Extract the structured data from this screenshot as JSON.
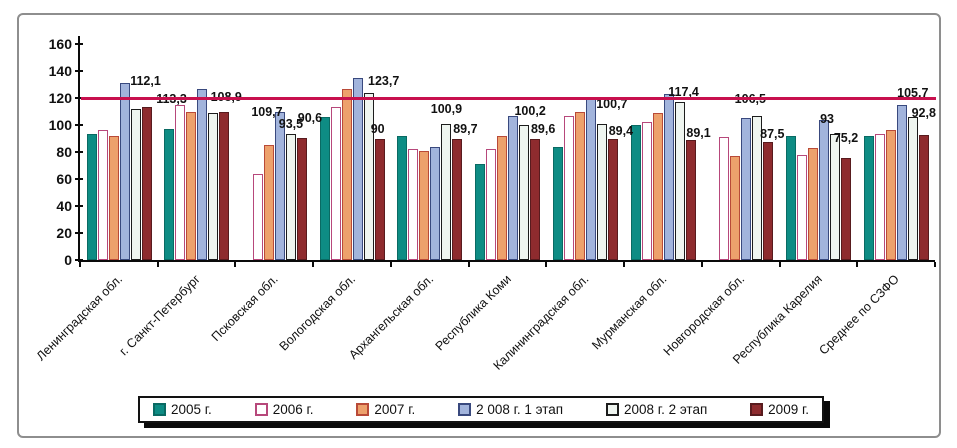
{
  "chart_data": {
    "type": "bar",
    "title": "",
    "xlabel": "",
    "ylabel": "",
    "ylim": [
      0,
      160
    ],
    "ytick_step": 20,
    "yticks": [
      "0",
      "20",
      "40",
      "60",
      "80",
      "100",
      "120",
      "140",
      "160"
    ],
    "grid": false,
    "legend_position": "bottom",
    "reference_line": {
      "value": 120,
      "color": "#C8104E"
    },
    "categories": [
      "Ленинградская обл.",
      "г. Санкт-Петербург",
      "Псковская обл.",
      "Вологодская обл.",
      "Архангельская обл.",
      "Республика Коми",
      "Калининградская обл.",
      "Мурманская обл.",
      "Новгородская обл.",
      "Республика Карелия",
      "Среднее по СЗФО"
    ],
    "series": [
      {
        "name": "2005 г.",
        "fill": "#0E8C84",
        "border": "#0A6A63",
        "values": [
          93,
          97,
          null,
          106,
          92,
          71,
          84,
          100,
          null,
          92,
          92
        ],
        "labels": [
          null,
          null,
          null,
          null,
          null,
          null,
          null,
          null,
          null,
          null,
          null
        ]
      },
      {
        "name": "2006 г.",
        "fill": "#FFFFFF",
        "border": "#B7487B",
        "values": [
          96,
          115,
          64,
          113,
          82,
          82,
          107,
          102,
          91,
          78,
          93
        ],
        "labels": [
          null,
          null,
          null,
          null,
          null,
          null,
          null,
          null,
          null,
          null,
          null
        ]
      },
      {
        "name": "2007 г.",
        "fill": "#EDA16C",
        "border": "#B94A38",
        "values": [
          92,
          110,
          85,
          127,
          81,
          92,
          110,
          109,
          77,
          83,
          96
        ],
        "labels": [
          null,
          null,
          null,
          null,
          null,
          null,
          null,
          null,
          null,
          null,
          null
        ]
      },
      {
        "name": "2 008 г. 1 этап",
        "fill": "#A2B4DC",
        "border": "#39497E",
        "values": [
          131,
          127,
          109.7,
          135,
          84,
          107,
          121,
          123,
          105,
          104,
          115
        ],
        "labels": [
          null,
          null,
          "109,7",
          null,
          null,
          null,
          null,
          null,
          null,
          null,
          null
        ]
      },
      {
        "name": "2008 г. 2 этап",
        "fill": "#EFF5F0",
        "border": "#1C1C1C",
        "values": [
          112.1,
          108.9,
          93.5,
          123.7,
          100.9,
          100.2,
          100.7,
          117.4,
          106.5,
          93,
          105.7
        ],
        "labels": [
          "112,1",
          "108,9",
          "93,5",
          "123,7",
          "100,9",
          "100,2",
          "100,7",
          "117,4",
          "106,5",
          "93",
          "105,7"
        ]
      },
      {
        "name": "2009 г.",
        "fill": "#8E2B2E",
        "border": "#581B1E",
        "values": [
          113.3,
          110,
          90.6,
          90,
          89.7,
          89.6,
          89.4,
          89.1,
          87.5,
          75.2,
          92.8
        ],
        "labels": [
          "113,3",
          null,
          "90,6",
          "90",
          "89,7",
          "89,6",
          "89,4",
          "89,1",
          "87,5",
          "75,2",
          "92,8"
        ]
      }
    ]
  }
}
